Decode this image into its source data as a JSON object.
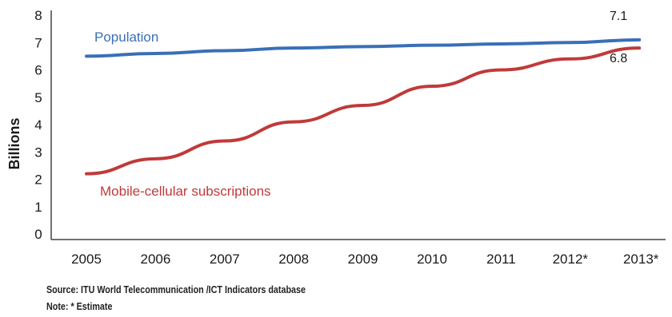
{
  "chart_data": {
    "type": "line",
    "title": "",
    "xlabel": "",
    "ylabel": "Billions",
    "categories": [
      "2005",
      "2006",
      "2007",
      "2008",
      "2009",
      "2010",
      "2011",
      "2012*",
      "2013*"
    ],
    "ylim": [
      0,
      8
    ],
    "yticks": [
      0,
      1,
      2,
      3,
      4,
      5,
      6,
      7,
      8
    ],
    "grid": false,
    "legend": "inline labels",
    "series": [
      {
        "name": "Population",
        "color": "#3a6fb7",
        "values": [
          6.5,
          6.6,
          6.7,
          6.8,
          6.85,
          6.9,
          6.95,
          7.0,
          7.1
        ],
        "end_label": "7.1"
      },
      {
        "name": "Mobile-cellular subscriptions",
        "color": "#c03a3a",
        "values": [
          2.2,
          2.75,
          3.4,
          4.1,
          4.7,
          5.4,
          6.0,
          6.4,
          6.8
        ],
        "end_label": "6.8"
      }
    ]
  },
  "footer": {
    "source": "Source:  ITU World Telecommunication /ICT Indicators database",
    "note": "Note: * Estimate"
  }
}
